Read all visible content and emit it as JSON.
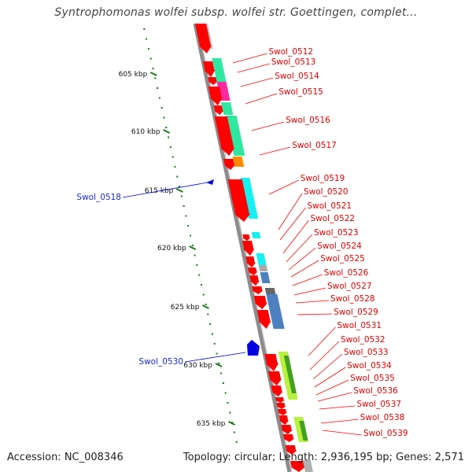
{
  "title": "Syntrophomonas wolfei subsp. wolfei str. Goettingen, complet...",
  "footer": {
    "accession": "Accession: NC_008346",
    "topology": "Topology: circular; Length: 2,936,195 bp; Genes: 2,571"
  },
  "colors": {
    "red": "#ff0000",
    "blue": "#0000e0",
    "ruler": "#1a7a1a",
    "backbone": "#8c8c8c"
  },
  "scale_labels": [
    "605 kbp",
    "610 kbp",
    "615 kbp",
    "620 kbp",
    "625 kbp",
    "630 kbp",
    "635 kbp"
  ],
  "genes_right": [
    "Swol_0512",
    "Swol_0513",
    "Swol_0514",
    "Swol_0515",
    "Swol_0516",
    "Swol_0517",
    "Swol_0519",
    "Swol_0520",
    "Swol_0521",
    "Swol_0522",
    "Swol_0523",
    "Swol_0524",
    "Swol_0525",
    "Swol_0526",
    "Swol_0527",
    "Swol_0528",
    "Swol_0529",
    "Swol_0531",
    "Swol_0532",
    "Swol_0533",
    "Swol_0534",
    "Swol_0535",
    "Swol_0536",
    "Swol_0537",
    "Swol_0538",
    "Swol_0539"
  ],
  "genes_left": [
    "Swol_0518",
    "Swol_0530"
  ]
}
